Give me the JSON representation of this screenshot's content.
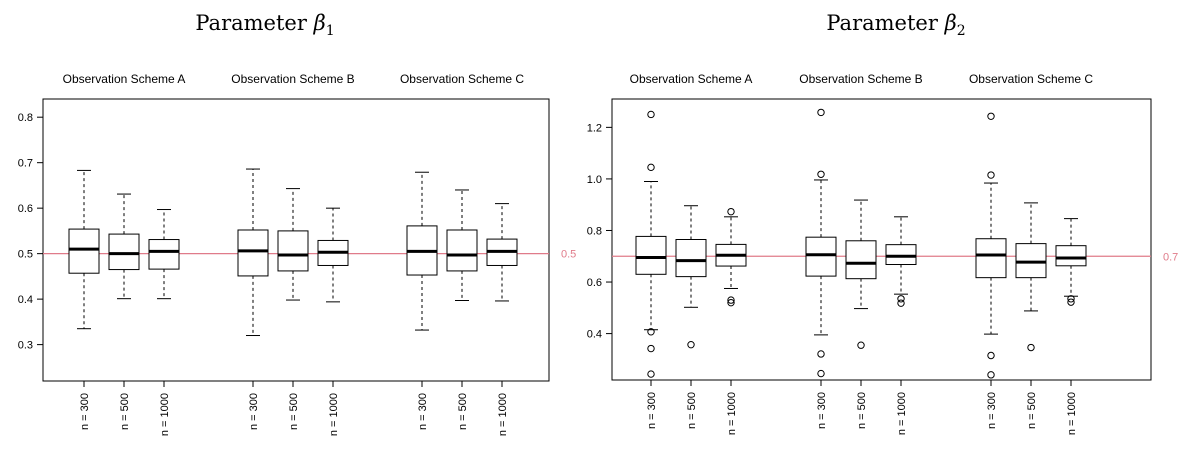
{
  "colors": {
    "reference_line": "#e07b8a",
    "median": "#000000",
    "box": "#000000"
  },
  "chart_data": [
    {
      "type": "box",
      "title_text": "Parameter ",
      "title_symbol": "β",
      "title_sub": "1",
      "groups": [
        "Observation Scheme A",
        "Observation Scheme B",
        "Observation Scheme C"
      ],
      "categories": [
        "n = 300",
        "n = 500",
        "n = 1000"
      ],
      "ylim": [
        0.22,
        0.84
      ],
      "yticks": [
        "0.3",
        "0.4",
        "0.5",
        "0.6",
        "0.7",
        "0.8"
      ],
      "reference_value": 0.5,
      "reference_label": "0.5",
      "boxes": [
        {
          "group": "Observation Scheme A",
          "category": "n = 300",
          "min": 0.335,
          "q1": 0.457,
          "median": 0.51,
          "q3": 0.554,
          "max": 0.683,
          "outliers": []
        },
        {
          "group": "Observation Scheme A",
          "category": "n = 500",
          "min": 0.401,
          "q1": 0.465,
          "median": 0.5,
          "q3": 0.543,
          "max": 0.631,
          "outliers": []
        },
        {
          "group": "Observation Scheme A",
          "category": "n = 1000",
          "min": 0.401,
          "q1": 0.466,
          "median": 0.505,
          "q3": 0.531,
          "max": 0.597,
          "outliers": []
        },
        {
          "group": "Observation Scheme B",
          "category": "n = 300",
          "min": 0.32,
          "q1": 0.451,
          "median": 0.506,
          "q3": 0.552,
          "max": 0.686,
          "outliers": []
        },
        {
          "group": "Observation Scheme B",
          "category": "n = 500",
          "min": 0.398,
          "q1": 0.462,
          "median": 0.497,
          "q3": 0.55,
          "max": 0.643,
          "outliers": []
        },
        {
          "group": "Observation Scheme B",
          "category": "n = 1000",
          "min": 0.394,
          "q1": 0.474,
          "median": 0.503,
          "q3": 0.529,
          "max": 0.6,
          "outliers": []
        },
        {
          "group": "Observation Scheme C",
          "category": "n = 300",
          "min": 0.332,
          "q1": 0.453,
          "median": 0.505,
          "q3": 0.561,
          "max": 0.679,
          "outliers": []
        },
        {
          "group": "Observation Scheme C",
          "category": "n = 500",
          "min": 0.397,
          "q1": 0.462,
          "median": 0.497,
          "q3": 0.552,
          "max": 0.64,
          "outliers": []
        },
        {
          "group": "Observation Scheme C",
          "category": "n = 1000",
          "min": 0.396,
          "q1": 0.474,
          "median": 0.505,
          "q3": 0.532,
          "max": 0.61,
          "outliers": []
        }
      ]
    },
    {
      "type": "box",
      "title_text": "Parameter ",
      "title_symbol": "β",
      "title_sub": "2",
      "groups": [
        "Observation Scheme A",
        "Observation Scheme B",
        "Observation Scheme C"
      ],
      "categories": [
        "n = 300",
        "n = 500",
        "n = 1000"
      ],
      "ylim": [
        0.22,
        1.31
      ],
      "yticks": [
        "0.4",
        "0.6",
        "0.8",
        "1.0",
        "1.2"
      ],
      "reference_value": 0.7,
      "reference_label": "0.7",
      "boxes": [
        {
          "group": "Observation Scheme A",
          "category": "n = 300",
          "min": 0.415,
          "q1": 0.63,
          "median": 0.695,
          "q3": 0.777,
          "max": 0.99,
          "outliers": [
            1.25,
            1.045,
            0.407,
            0.342,
            0.243
          ]
        },
        {
          "group": "Observation Scheme A",
          "category": "n = 500",
          "min": 0.502,
          "q1": 0.621,
          "median": 0.683,
          "q3": 0.765,
          "max": 0.896,
          "outliers": [
            0.357
          ]
        },
        {
          "group": "Observation Scheme A",
          "category": "n = 1000",
          "min": 0.575,
          "q1": 0.662,
          "median": 0.704,
          "q3": 0.746,
          "max": 0.853,
          "outliers": [
            0.873,
            0.53,
            0.52
          ]
        },
        {
          "group": "Observation Scheme B",
          "category": "n = 300",
          "min": 0.395,
          "q1": 0.623,
          "median": 0.706,
          "q3": 0.774,
          "max": 0.996,
          "outliers": [
            1.258,
            1.018,
            0.321,
            0.245
          ]
        },
        {
          "group": "Observation Scheme B",
          "category": "n = 500",
          "min": 0.497,
          "q1": 0.613,
          "median": 0.673,
          "q3": 0.76,
          "max": 0.918,
          "outliers": [
            0.355
          ]
        },
        {
          "group": "Observation Scheme B",
          "category": "n = 1000",
          "min": 0.553,
          "q1": 0.668,
          "median": 0.7,
          "q3": 0.745,
          "max": 0.853,
          "outliers": [
            0.535,
            0.518
          ]
        },
        {
          "group": "Observation Scheme C",
          "category": "n = 300",
          "min": 0.398,
          "q1": 0.617,
          "median": 0.705,
          "q3": 0.768,
          "max": 0.984,
          "outliers": [
            1.243,
            1.015,
            0.315,
            0.24
          ]
        },
        {
          "group": "Observation Scheme C",
          "category": "n = 500",
          "min": 0.488,
          "q1": 0.617,
          "median": 0.677,
          "q3": 0.749,
          "max": 0.907,
          "outliers": [
            0.346
          ]
        },
        {
          "group": "Observation Scheme C",
          "category": "n = 1000",
          "min": 0.545,
          "q1": 0.663,
          "median": 0.693,
          "q3": 0.741,
          "max": 0.846,
          "outliers": [
            0.535,
            0.522
          ]
        }
      ]
    }
  ]
}
